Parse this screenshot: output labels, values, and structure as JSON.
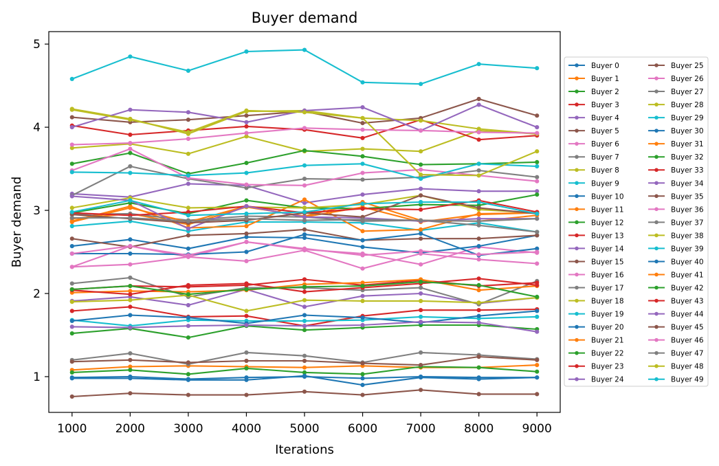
{
  "chart_data": {
    "type": "line",
    "title": "Buyer demand",
    "xlabel": "Iterations",
    "ylabel": "Buyer demand",
    "x": [
      1000,
      2000,
      3000,
      4000,
      5000,
      6000,
      7000,
      8000,
      9000
    ],
    "xlim": [
      600,
      9400
    ],
    "ylim": [
      0.57,
      5.15
    ],
    "xticks": [
      1000,
      2000,
      3000,
      4000,
      5000,
      6000,
      7000,
      8000,
      9000
    ],
    "yticks": [
      1,
      2,
      3,
      4,
      5
    ],
    "grid": false,
    "legend_placement": "right, outside plot (2 columns)",
    "series": [
      {
        "name": "Buyer 0",
        "color": "#1f77b4",
        "values": [
          0.99,
          1.0,
          0.97,
          0.99,
          1.0,
          0.98,
          1.0,
          0.99,
          0.99
        ]
      },
      {
        "name": "Buyer 1",
        "color": "#ff7f0e",
        "values": [
          1.08,
          1.12,
          1.13,
          1.12,
          1.11,
          1.13,
          1.11,
          1.11,
          1.14
        ]
      },
      {
        "name": "Buyer 2",
        "color": "#2ca02c",
        "values": [
          1.52,
          1.58,
          1.47,
          1.61,
          1.56,
          1.59,
          1.62,
          1.62,
          1.57
        ]
      },
      {
        "name": "Buyer 3",
        "color": "#d62728",
        "values": [
          1.79,
          1.84,
          1.72,
          1.73,
          1.61,
          1.73,
          1.8,
          1.8,
          1.81
        ]
      },
      {
        "name": "Buyer 4",
        "color": "#9467bd",
        "values": [
          1.91,
          1.96,
          1.86,
          2.05,
          1.84,
          1.97,
          2.0,
          1.88,
          1.95
        ]
      },
      {
        "name": "Buyer 5",
        "color": "#8c564b",
        "values": [
          0.76,
          0.8,
          0.78,
          0.78,
          0.82,
          0.78,
          0.84,
          0.79,
          0.79
        ]
      },
      {
        "name": "Buyer 6",
        "color": "#e377c2",
        "values": [
          2.32,
          2.57,
          2.44,
          2.62,
          2.53,
          2.48,
          2.35,
          2.56,
          2.49
        ]
      },
      {
        "name": "Buyer 7",
        "color": "#7f7f7f",
        "values": [
          2.12,
          2.19,
          1.96,
          2.07,
          2.07,
          2.04,
          2.07,
          1.87,
          2.15
        ]
      },
      {
        "name": "Buyer 8",
        "color": "#bcbd22",
        "values": [
          3.75,
          3.8,
          3.68,
          3.89,
          3.71,
          3.74,
          3.71,
          3.96,
          3.92
        ]
      },
      {
        "name": "Buyer 9",
        "color": "#17becf",
        "values": [
          2.81,
          2.87,
          2.75,
          2.86,
          2.86,
          2.85,
          2.76,
          2.85,
          2.74
        ]
      },
      {
        "name": "Buyer 10",
        "color": "#1f77b4",
        "values": [
          2.57,
          2.65,
          2.54,
          2.68,
          2.67,
          2.56,
          2.49,
          2.57,
          2.7
        ]
      },
      {
        "name": "Buyer 11",
        "color": "#ff7f0e",
        "values": [
          2.9,
          2.96,
          2.83,
          3.04,
          2.93,
          3.1,
          2.88,
          2.87,
          2.94
        ]
      },
      {
        "name": "Buyer 12",
        "color": "#2ca02c",
        "values": [
          3.56,
          3.69,
          3.44,
          3.57,
          3.72,
          3.65,
          3.55,
          3.56,
          3.58
        ]
      },
      {
        "name": "Buyer 13",
        "color": "#d62728",
        "values": [
          2.05,
          2.09,
          2.08,
          2.1,
          2.17,
          2.1,
          2.16,
          2.09,
          2.13
        ]
      },
      {
        "name": "Buyer 14",
        "color": "#9467bd",
        "values": [
          3.2,
          3.16,
          3.32,
          3.3,
          3.09,
          3.19,
          3.26,
          3.23,
          3.23
        ]
      },
      {
        "name": "Buyer 15",
        "color": "#8c564b",
        "values": [
          2.66,
          2.56,
          2.7,
          2.72,
          2.77,
          2.64,
          2.66,
          2.66,
          2.7
        ]
      },
      {
        "name": "Buyer 16",
        "color": "#e377c2",
        "values": [
          2.32,
          2.35,
          2.44,
          2.39,
          2.52,
          2.3,
          2.48,
          2.41,
          2.36
        ]
      },
      {
        "name": "Buyer 17",
        "color": "#7f7f7f",
        "values": [
          3.18,
          3.53,
          3.38,
          3.27,
          3.38,
          3.37,
          3.4,
          3.48,
          3.4
        ]
      },
      {
        "name": "Buyer 18",
        "color": "#bcbd22",
        "values": [
          1.9,
          1.92,
          1.98,
          1.79,
          1.92,
          1.91,
          1.91,
          1.89,
          1.95
        ]
      },
      {
        "name": "Buyer 19",
        "color": "#17becf",
        "values": [
          1.68,
          1.61,
          1.68,
          1.67,
          1.67,
          1.68,
          1.72,
          1.7,
          1.72
        ]
      },
      {
        "name": "Buyer 20",
        "color": "#1f77b4",
        "values": [
          1.67,
          1.74,
          1.71,
          1.64,
          1.74,
          1.71,
          1.65,
          1.73,
          1.79
        ]
      },
      {
        "name": "Buyer 21",
        "color": "#ff7f0e",
        "values": [
          2.01,
          2.03,
          2.02,
          2.04,
          2.11,
          2.13,
          2.17,
          2.04,
          2.09
        ]
      },
      {
        "name": "Buyer 22",
        "color": "#2ca02c",
        "values": [
          1.05,
          1.08,
          1.03,
          1.1,
          1.05,
          1.03,
          1.12,
          1.11,
          1.06
        ]
      },
      {
        "name": "Buyer 23",
        "color": "#d62728",
        "values": [
          4.02,
          3.91,
          3.96,
          4.01,
          3.97,
          3.87,
          4.09,
          3.85,
          3.9
        ]
      },
      {
        "name": "Buyer 24",
        "color": "#9467bd",
        "values": [
          1.6,
          1.59,
          1.61,
          1.62,
          1.61,
          1.62,
          1.66,
          1.65,
          1.54
        ]
      },
      {
        "name": "Buyer 25",
        "color": "#8c564b",
        "values": [
          4.12,
          4.06,
          4.09,
          4.14,
          4.19,
          4.05,
          4.11,
          4.34,
          4.14
        ]
      },
      {
        "name": "Buyer 26",
        "color": "#e377c2",
        "values": [
          3.48,
          3.74,
          3.39,
          3.31,
          3.3,
          3.45,
          3.49,
          3.42,
          3.35
        ]
      },
      {
        "name": "Buyer 27",
        "color": "#7f7f7f",
        "values": [
          1.2,
          1.28,
          1.15,
          1.29,
          1.25,
          1.17,
          1.29,
          1.26,
          1.21
        ]
      },
      {
        "name": "Buyer 28",
        "color": "#bcbd22",
        "values": [
          4.22,
          4.1,
          3.92,
          4.19,
          4.2,
          4.11,
          4.08,
          3.98,
          3.92
        ]
      },
      {
        "name": "Buyer 29",
        "color": "#17becf",
        "values": [
          3.46,
          3.45,
          3.42,
          3.45,
          3.54,
          3.56,
          3.38,
          3.56,
          3.53
        ]
      },
      {
        "name": "Buyer 30",
        "color": "#1f77b4",
        "values": [
          2.48,
          2.48,
          2.47,
          2.5,
          2.71,
          2.64,
          2.72,
          2.46,
          2.54
        ]
      },
      {
        "name": "Buyer 31",
        "color": "#ff7f0e",
        "values": [
          2.87,
          3.05,
          2.79,
          2.81,
          3.13,
          2.75,
          2.77,
          2.96,
          2.97
        ]
      },
      {
        "name": "Buyer 32",
        "color": "#2ca02c",
        "values": [
          2.97,
          3.09,
          2.96,
          3.12,
          3.03,
          3.02,
          3.07,
          3.06,
          3.19
        ]
      },
      {
        "name": "Buyer 33",
        "color": "#d62728",
        "values": [
          2.04,
          1.99,
          2.1,
          2.12,
          2.02,
          2.07,
          2.12,
          2.18,
          2.1
        ]
      },
      {
        "name": "Buyer 34",
        "color": "#9467bd",
        "values": [
          4.0,
          4.21,
          4.18,
          4.06,
          4.2,
          4.24,
          3.96,
          4.27,
          4.0
        ]
      },
      {
        "name": "Buyer 35",
        "color": "#8c564b",
        "values": [
          1.18,
          1.2,
          1.17,
          1.19,
          1.19,
          1.16,
          1.14,
          1.24,
          1.2
        ]
      },
      {
        "name": "Buyer 36",
        "color": "#e377c2",
        "values": [
          3.79,
          3.81,
          3.86,
          3.93,
          3.99,
          3.97,
          3.96,
          3.94,
          3.93
        ]
      },
      {
        "name": "Buyer 37",
        "color": "#7f7f7f",
        "values": [
          2.95,
          2.96,
          2.88,
          2.93,
          2.92,
          2.87,
          2.88,
          2.82,
          2.74
        ]
      },
      {
        "name": "Buyer 38",
        "color": "#bcbd22",
        "values": [
          3.03,
          3.15,
          3.03,
          3.04,
          3.03,
          3.07,
          3.18,
          3.01,
          2.97
        ]
      },
      {
        "name": "Buyer 39",
        "color": "#17becf",
        "values": [
          4.58,
          4.85,
          4.68,
          4.91,
          4.93,
          4.54,
          4.52,
          4.76,
          4.71
        ]
      },
      {
        "name": "Buyer 40",
        "color": "#1f77b4",
        "values": [
          0.98,
          0.98,
          0.96,
          0.96,
          1.01,
          0.9,
          0.99,
          0.97,
          0.99
        ]
      },
      {
        "name": "Buyer 41",
        "color": "#ff7f0e",
        "values": [
          2.86,
          3.03,
          2.86,
          3.05,
          2.92,
          3.04,
          2.86,
          2.95,
          2.97
        ]
      },
      {
        "name": "Buyer 42",
        "color": "#2ca02c",
        "values": [
          2.05,
          2.09,
          1.99,
          2.05,
          2.08,
          2.09,
          2.14,
          2.1,
          1.96
        ]
      },
      {
        "name": "Buyer 43",
        "color": "#d62728",
        "values": [
          2.97,
          2.94,
          2.98,
          3.05,
          2.97,
          3.02,
          3.01,
          3.12,
          2.98
        ]
      },
      {
        "name": "Buyer 44",
        "color": "#9467bd",
        "values": [
          3.17,
          3.12,
          2.78,
          3.05,
          2.92,
          2.91,
          2.87,
          2.9,
          2.9
        ]
      },
      {
        "name": "Buyer 45",
        "color": "#8c564b",
        "values": [
          2.95,
          2.9,
          2.85,
          2.88,
          2.97,
          2.92,
          3.18,
          3.03,
          2.96
        ]
      },
      {
        "name": "Buyer 46",
        "color": "#e377c2",
        "values": [
          2.48,
          2.57,
          2.46,
          2.62,
          2.54,
          2.46,
          2.51,
          2.47,
          2.5
        ]
      },
      {
        "name": "Buyer 47",
        "color": "#7f7f7f",
        "values": [
          2.91,
          2.91,
          2.87,
          2.9,
          2.88,
          2.89,
          2.88,
          2.87,
          2.9
        ]
      },
      {
        "name": "Buyer 48",
        "color": "#bcbd22",
        "values": [
          4.21,
          4.09,
          3.94,
          4.2,
          4.18,
          4.11,
          3.43,
          3.42,
          3.71
        ]
      },
      {
        "name": "Buyer 49",
        "color": "#17becf",
        "values": [
          2.98,
          3.12,
          2.94,
          2.96,
          2.98,
          3.08,
          3.1,
          3.1,
          2.96
        ]
      }
    ]
  }
}
